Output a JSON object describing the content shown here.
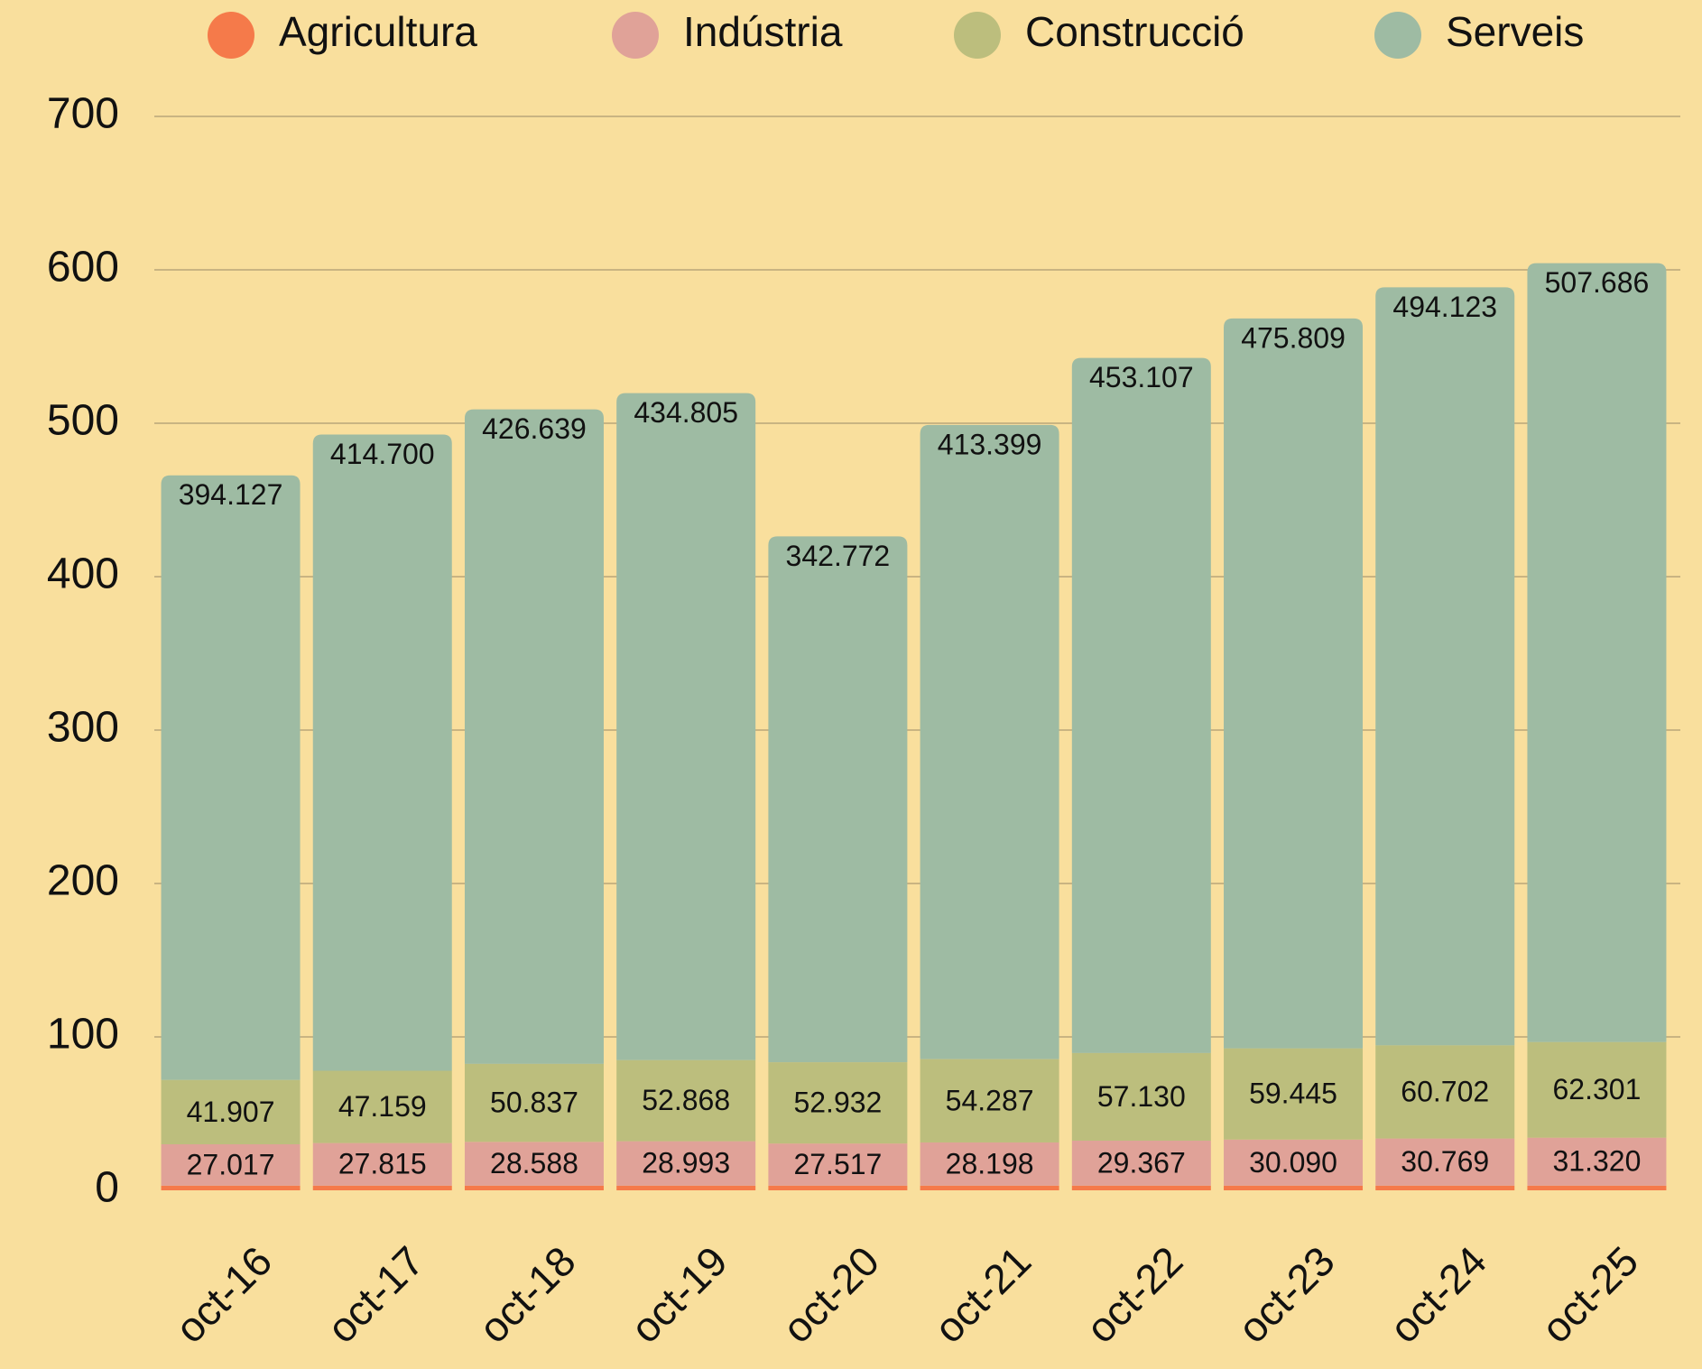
{
  "chart_data": {
    "type": "stacked_bar",
    "categories": [
      "oct-16",
      "oct-17",
      "oct-18",
      "oct-19",
      "oct-20",
      "oct-21",
      "oct-22",
      "oct-23",
      "oct-24",
      "oct-25"
    ],
    "series": [
      {
        "name": "Agricultura",
        "color": "#f57a4a",
        "values": [
          3,
          3,
          3,
          3,
          3,
          3,
          3,
          3,
          3,
          3
        ]
      },
      {
        "name": "Indústria",
        "color": "#e0a298",
        "values": [
          27.017,
          27.815,
          28.588,
          28.993,
          27.517,
          28.198,
          29.367,
          30.09,
          30.769,
          31.32
        ],
        "value_labels": [
          "27.017",
          "27.815",
          "28.588",
          "28.993",
          "27.517",
          "28.198",
          "29.367",
          "30.090",
          "30.769",
          "31.320"
        ]
      },
      {
        "name": "Construcció",
        "color": "#bcbe7d",
        "values": [
          41.907,
          47.159,
          50.837,
          52.868,
          52.932,
          54.287,
          57.13,
          59.445,
          60.702,
          62.301
        ],
        "value_labels": [
          "41.907",
          "47.159",
          "50.837",
          "52.868",
          "52.932",
          "54.287",
          "57.130",
          "59.445",
          "60.702",
          "62.301"
        ]
      },
      {
        "name": "Serveis",
        "color": "#9ebba3",
        "values": [
          394.127,
          414.7,
          426.639,
          434.805,
          342.772,
          413.399,
          453.107,
          475.809,
          494.123,
          507.686
        ],
        "value_labels": [
          "394.127",
          "414.700",
          "426.639",
          "434.805",
          "342.772",
          "413.399",
          "453.107",
          "475.809",
          "494.123",
          "507.686"
        ]
      }
    ],
    "ylim": [
      0,
      700
    ],
    "yticks": [
      0,
      100,
      200,
      300,
      400,
      500,
      600,
      700
    ],
    "grid": true,
    "legend": "top"
  }
}
